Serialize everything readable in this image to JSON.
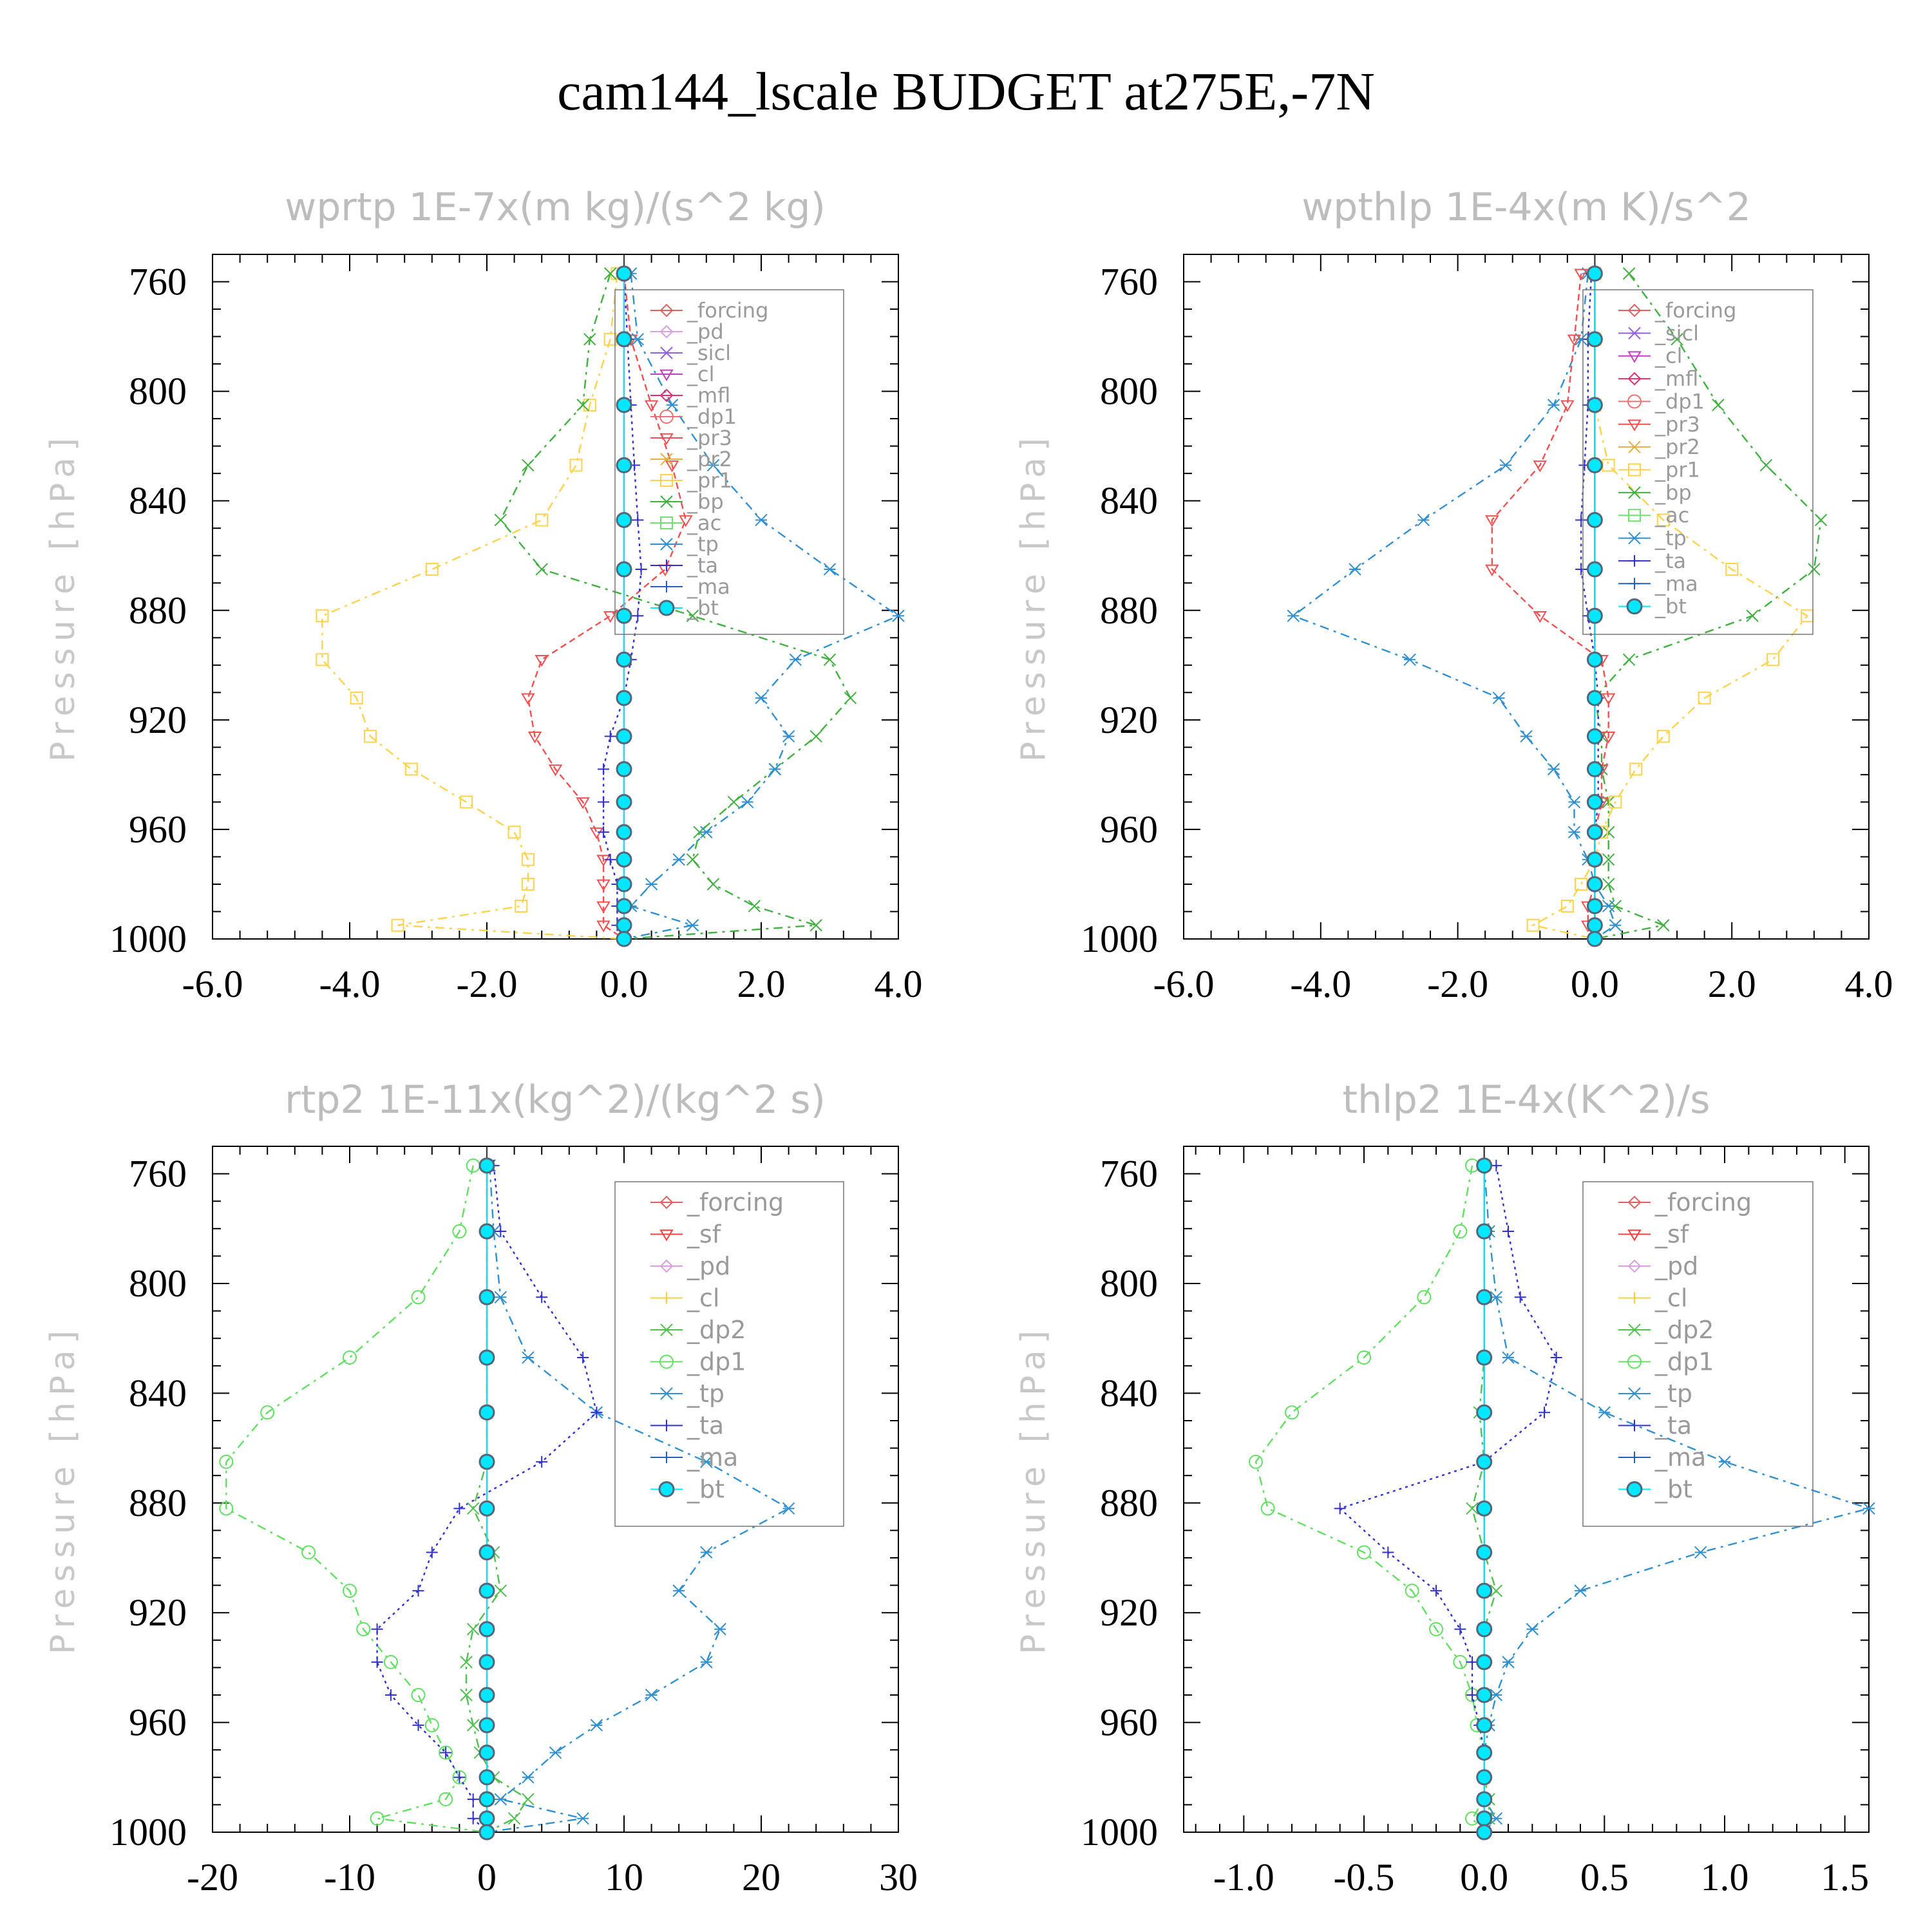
{
  "title": "cam144_lscale  BUDGET at275E,-7N",
  "yaxis": {
    "label": "Pressure [hPa]",
    "ticks": [
      760,
      800,
      840,
      880,
      920,
      960,
      1000
    ],
    "range": [
      750,
      1000
    ],
    "minor": 10
  },
  "levels": [
    757,
    781,
    805,
    827,
    847,
    865,
    882,
    898,
    912,
    926,
    938,
    950,
    961,
    971,
    980,
    988,
    995,
    1000
  ],
  "colors": {
    "forcing": "#e06060",
    "pd": "#d8a0e0",
    "sicl": "#9060e0",
    "cl": "#c040c0",
    "mfl": "#e03070",
    "dp1": "#f07070",
    "pr3": "#f05050",
    "pr2": "#e0b040",
    "pr1": "#ffd24a",
    "bp": "#40b040",
    "ac": "#70e070",
    "tp": "#3090d0",
    "ta": "#3030d0",
    "ma": "#2060c0",
    "bt": "#00e8ff",
    "sf": "#f04040",
    "cl2": "#ffcc33",
    "dp2": "#50c050",
    "dp1g": "#60e060"
  },
  "chart_data": [
    {
      "type": "line",
      "title": "wprtp  1E-7x(m kg)/(s^2 kg)",
      "ylabel": "Pressure [hPa]",
      "xlim": [
        -6,
        4
      ],
      "xticks": [
        -6,
        -4,
        -2,
        0,
        2,
        4
      ],
      "xtick_labels": [
        "-6.0",
        "-4.0",
        "-2.0",
        "0.0",
        "2.0",
        "4.0"
      ],
      "legend": [
        "_forcing",
        "_pd",
        "_sicl",
        "_cl",
        "_mfl",
        "_dp1",
        "_pr3",
        "_pr2",
        "_pr1",
        "_bp",
        "_ac",
        "_tp",
        "_ta",
        "_ma",
        "_bt"
      ],
      "series": [
        {
          "name": "_pr1",
          "color": "pr1",
          "marker": "square",
          "dash": "14,8,4,8",
          "values": [
            -0.1,
            -0.2,
            -0.5,
            -0.7,
            -1.2,
            -2.8,
            -4.4,
            -4.4,
            -3.9,
            -3.7,
            -3.1,
            -2.3,
            -1.6,
            -1.4,
            -1.4,
            -1.5,
            -3.3,
            0.0
          ]
        },
        {
          "name": "_bp",
          "color": "bp",
          "marker": "x",
          "dash": "14,8,4,8",
          "values": [
            -0.2,
            -0.5,
            -0.6,
            -1.4,
            -1.8,
            -1.2,
            1.0,
            3.0,
            3.3,
            2.8,
            2.2,
            1.6,
            1.1,
            1.0,
            1.3,
            1.9,
            2.8,
            0.0
          ]
        },
        {
          "name": "_pr3",
          "color": "pr3",
          "marker": "tri-down",
          "dash": "10,6",
          "values": [
            0.0,
            0.1,
            0.4,
            0.7,
            0.9,
            0.6,
            -0.2,
            -1.2,
            -1.4,
            -1.3,
            -1.0,
            -0.6,
            -0.4,
            -0.3,
            -0.3,
            -0.3,
            -0.3,
            0.0
          ]
        },
        {
          "name": "_tp",
          "color": "tp",
          "marker": "star",
          "dash": "14,8,4,8",
          "values": [
            0.1,
            0.2,
            0.7,
            1.3,
            2.0,
            3.0,
            4.0,
            2.5,
            2.0,
            2.4,
            2.2,
            1.8,
            1.2,
            0.8,
            0.4,
            0.1,
            1.0,
            0.0
          ]
        },
        {
          "name": "_ta",
          "color": "ta",
          "marker": "plus",
          "dash": "4,6",
          "values": [
            0.0,
            0.05,
            0.1,
            0.15,
            0.2,
            0.25,
            0.2,
            0.1,
            0.0,
            -0.2,
            -0.3,
            -0.3,
            -0.3,
            -0.2,
            -0.1,
            -0.1,
            -0.1,
            0.0
          ]
        },
        {
          "name": "_mfl",
          "color": "mfl",
          "marker": "diamond",
          "dash": "",
          "values": [
            0,
            0,
            0,
            0,
            0,
            0,
            0,
            0,
            0,
            0,
            0,
            0,
            0,
            0,
            0,
            0,
            0,
            0
          ]
        },
        {
          "name": "_bt",
          "color": "bt",
          "marker": "bullet",
          "dash": "",
          "values": [
            0,
            0,
            0,
            0,
            0,
            0,
            0,
            0,
            0,
            0,
            0,
            0,
            0,
            0,
            0,
            0,
            0,
            0
          ]
        }
      ]
    },
    {
      "type": "line",
      "title": "wpthlp  1E-4x(m K)/s^2",
      "ylabel": "Pressure [hPa]",
      "xlim": [
        -6,
        4
      ],
      "xticks": [
        -6,
        -4,
        -2,
        0,
        2,
        4
      ],
      "xtick_labels": [
        "-6.0",
        "-4.0",
        "-2.0",
        "0.0",
        "2.0",
        "4.0"
      ],
      "legend": [
        "_forcing",
        "_sicl",
        "_cl",
        "_mfl",
        "_dp1",
        "_pr3",
        "_pr2",
        "_pr1",
        "_bp",
        "_ac",
        "_tp",
        "_ta",
        "_ma",
        "_bt"
      ],
      "series": [
        {
          "name": "_bp",
          "color": "bp",
          "marker": "x",
          "dash": "14,8,4,8",
          "values": [
            0.5,
            1.2,
            1.8,
            2.5,
            3.3,
            3.2,
            2.3,
            0.5,
            0.0,
            0.1,
            0.1,
            0.2,
            0.2,
            0.2,
            0.2,
            0.3,
            1.0,
            0.0
          ]
        },
        {
          "name": "_tp",
          "color": "tp",
          "marker": "star",
          "dash": "14,8,4,8",
          "values": [
            -0.1,
            -0.2,
            -0.6,
            -1.3,
            -2.5,
            -3.5,
            -4.4,
            -2.7,
            -1.4,
            -1.0,
            -0.6,
            -0.3,
            -0.3,
            -0.1,
            0.0,
            0.2,
            0.3,
            0.0
          ]
        },
        {
          "name": "_pr1",
          "color": "pr1",
          "marker": "square",
          "dash": "14,8,4,8",
          "values": [
            0.0,
            0.0,
            0.0,
            0.2,
            1.0,
            2.0,
            3.1,
            2.6,
            1.6,
            1.0,
            0.6,
            0.3,
            0.1,
            0.0,
            -0.2,
            -0.4,
            -0.9,
            0.0
          ]
        },
        {
          "name": "_pr3",
          "color": "pr3",
          "marker": "tri-down",
          "dash": "10,6",
          "values": [
            -0.2,
            -0.3,
            -0.4,
            -0.8,
            -1.5,
            -1.5,
            -0.8,
            0.1,
            0.2,
            0.2,
            0.1,
            0.1,
            0.0,
            0.0,
            0.0,
            -0.1,
            -0.1,
            0.0
          ]
        },
        {
          "name": "_ta",
          "color": "ta",
          "marker": "plus",
          "dash": "4,6",
          "values": [
            -0.05,
            -0.1,
            -0.1,
            -0.15,
            -0.2,
            -0.2,
            -0.1,
            0.0,
            0.05,
            0.05,
            0.05,
            0.05,
            0.0,
            0.0,
            0.0,
            0.0,
            0.0,
            0.0
          ]
        },
        {
          "name": "_mfl",
          "color": "mfl",
          "marker": "diamond",
          "dash": "",
          "values": [
            0,
            0,
            0,
            0,
            0,
            0,
            0,
            0,
            0,
            0,
            0,
            0,
            0,
            0,
            0,
            0,
            0,
            0
          ]
        },
        {
          "name": "_bt",
          "color": "bt",
          "marker": "bullet",
          "dash": "",
          "values": [
            0,
            0,
            0,
            0,
            0,
            0,
            0,
            0,
            0,
            0,
            0,
            0,
            0,
            0,
            0,
            0,
            0,
            0
          ]
        }
      ]
    },
    {
      "type": "line",
      "title": "rtp2  1E-11x(kg^2)/(kg^2 s)",
      "ylabel": "Pressure [hPa]",
      "xlim": [
        -20,
        30
      ],
      "xticks": [
        -20,
        -10,
        0,
        10,
        20,
        30
      ],
      "xtick_labels": [
        "-20",
        "-10",
        "0",
        "10",
        "20",
        "30"
      ],
      "legend": [
        "_forcing",
        "_sf",
        "_pd",
        "_cl",
        "_dp2",
        "_dp1",
        "_tp",
        "_ta",
        "_ma",
        "_bt"
      ],
      "series": [
        {
          "name": "_dp1",
          "color": "dp1g",
          "marker": "circle",
          "dash": "14,8,4,8",
          "values": [
            -1.0,
            -2.0,
            -5.0,
            -10.0,
            -16.0,
            -19.0,
            -19.0,
            -13.0,
            -10.0,
            -9.0,
            -7.0,
            -5.0,
            -4.0,
            -3.0,
            -2.0,
            -3.0,
            -8.0,
            0.0
          ]
        },
        {
          "name": "_tp",
          "color": "tp",
          "marker": "star",
          "dash": "14,8,4,8",
          "values": [
            0.2,
            0.5,
            1.0,
            3.0,
            8.0,
            16.0,
            22.0,
            16.0,
            14.0,
            17.0,
            16.0,
            12.0,
            8.0,
            5.0,
            3.0,
            1.0,
            7.0,
            0.0
          ]
        },
        {
          "name": "_ta",
          "color": "ta",
          "marker": "plus",
          "dash": "4,6",
          "values": [
            0.5,
            1.0,
            4.0,
            7.0,
            8.0,
            4.0,
            -2.0,
            -4.0,
            -5.0,
            -8.0,
            -8.0,
            -7.0,
            -5.0,
            -3.0,
            -2.0,
            -1.0,
            -1.0,
            0.0
          ]
        },
        {
          "name": "_dp2",
          "color": "dp2",
          "marker": "x",
          "dash": "14,8,4,8",
          "values": [
            0.0,
            0.0,
            0.0,
            0.0,
            0.0,
            0.0,
            -1.0,
            0.5,
            1.0,
            -1.0,
            -1.5,
            -1.5,
            -1.0,
            -0.5,
            0.5,
            3.0,
            2.0,
            0.0
          ]
        },
        {
          "name": "_forcing",
          "color": "forcing",
          "marker": "diamond",
          "dash": "",
          "values": [
            0,
            0,
            0,
            0,
            0,
            0,
            0,
            0,
            0,
            0,
            0,
            0,
            0,
            0,
            0,
            0,
            0,
            0
          ]
        },
        {
          "name": "_bt",
          "color": "bt",
          "marker": "bullet",
          "dash": "",
          "values": [
            0,
            0,
            0,
            0,
            0,
            0,
            0,
            0,
            0,
            0,
            0,
            0,
            0,
            0,
            0,
            0,
            0,
            0
          ]
        }
      ]
    },
    {
      "type": "line",
      "title": "thlp2  1E-4x(K^2)/s",
      "ylabel": "Pressure [hPa]",
      "xlim": [
        -1.25,
        1.6
      ],
      "xticks": [
        -1.0,
        -0.5,
        0.0,
        0.5,
        1.0,
        1.5
      ],
      "xtick_labels": [
        "-1.0",
        "-0.5",
        "0.0",
        "0.5",
        "1.0",
        "1.5"
      ],
      "legend": [
        "_forcing",
        "_sf",
        "_pd",
        "_cl",
        "_dp2",
        "_dp1",
        "_tp",
        "_ta",
        "_ma",
        "_bt"
      ],
      "series": [
        {
          "name": "_dp1",
          "color": "dp1g",
          "marker": "circle",
          "dash": "14,8,4,8",
          "values": [
            -0.05,
            -0.1,
            -0.25,
            -0.5,
            -0.8,
            -0.95,
            -0.9,
            -0.5,
            -0.3,
            -0.2,
            -0.1,
            -0.05,
            -0.03,
            0.0,
            0.0,
            0.0,
            -0.05,
            0.0
          ]
        },
        {
          "name": "_tp",
          "color": "tp",
          "marker": "star",
          "dash": "14,8,4,8",
          "values": [
            0.0,
            0.02,
            0.05,
            0.1,
            0.5,
            1.0,
            1.6,
            0.9,
            0.4,
            0.2,
            0.1,
            0.05,
            0.02,
            0.0,
            0.0,
            0.0,
            0.05,
            0.0
          ]
        },
        {
          "name": "_ta",
          "color": "ta",
          "marker": "plus",
          "dash": "4,6",
          "values": [
            0.05,
            0.1,
            0.15,
            0.3,
            0.25,
            0.0,
            -0.6,
            -0.4,
            -0.2,
            -0.1,
            -0.05,
            -0.05,
            -0.02,
            0.0,
            0.0,
            0.0,
            0.0,
            0.0
          ]
        },
        {
          "name": "_dp2",
          "color": "dp2",
          "marker": "x",
          "dash": "14,8,4,8",
          "values": [
            0.0,
            0.0,
            0.0,
            0.0,
            -0.02,
            0.0,
            -0.05,
            0.0,
            0.05,
            0.0,
            0.0,
            0.0,
            0.0,
            0.0,
            0.0,
            0.02,
            0.02,
            0.0
          ]
        },
        {
          "name": "_forcing",
          "color": "forcing",
          "marker": "diamond",
          "dash": "",
          "values": [
            0,
            0,
            0,
            0,
            0,
            0,
            0,
            0,
            0,
            0,
            0,
            0,
            0,
            0,
            0,
            0,
            0,
            0
          ]
        },
        {
          "name": "_bt",
          "color": "bt",
          "marker": "bullet",
          "dash": "",
          "values": [
            0,
            0,
            0,
            0,
            0,
            0,
            0,
            0,
            0,
            0,
            0,
            0,
            0,
            0,
            0,
            0,
            0,
            0
          ]
        }
      ]
    }
  ]
}
